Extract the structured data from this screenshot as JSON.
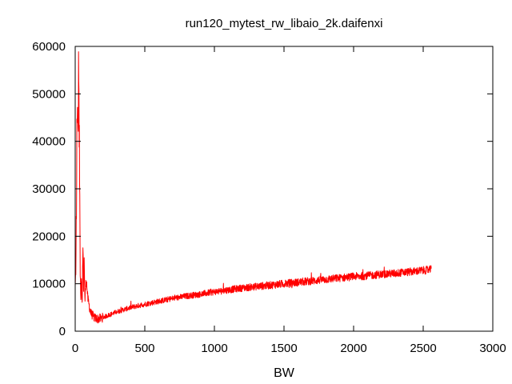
{
  "chart_data": {
    "type": "line",
    "title": "run120_mytest_rw_libaio_2k.daifenxi",
    "xlabel": "BW",
    "ylabel": "",
    "xlim": [
      0,
      3000
    ],
    "ylim": [
      0,
      60000
    ],
    "xticks": [
      0,
      500,
      1000,
      1500,
      2000,
      2500,
      3000
    ],
    "yticks": [
      0,
      10000,
      20000,
      30000,
      40000,
      50000,
      60000
    ],
    "grid": false,
    "legend": "none",
    "series": [
      {
        "name": "run120_mytest_rw_libaio_2k.daifenxi",
        "color": "#ff0000",
        "x_range": [
          0,
          2560
        ],
        "noise_amplitude": 700,
        "x": [
          0,
          5,
          10,
          15,
          20,
          25,
          30,
          35,
          40,
          45,
          50,
          55,
          60,
          65,
          70,
          80,
          90,
          100,
          110,
          120,
          140,
          160,
          180,
          200,
          250,
          300,
          400,
          500,
          600,
          700,
          800,
          900,
          1000,
          1100,
          1200,
          1300,
          1400,
          1500,
          1600,
          1700,
          1800,
          1900,
          2000,
          2100,
          2200,
          2300,
          2400,
          2500,
          2560
        ],
        "values": [
          9000,
          13000,
          31000,
          51000,
          38000,
          59500,
          41000,
          16000,
          6000,
          12000,
          5000,
          19000,
          9000,
          14000,
          6500,
          11000,
          7000,
          5500,
          4000,
          3500,
          2800,
          2600,
          2700,
          2900,
          3500,
          4100,
          5000,
          5700,
          6300,
          6900,
          7400,
          7800,
          8300,
          8700,
          9100,
          9400,
          9700,
          10000,
          10300,
          10600,
          10900,
          11200,
          11500,
          11700,
          12000,
          12200,
          12500,
          12800,
          13000
        ]
      }
    ]
  }
}
